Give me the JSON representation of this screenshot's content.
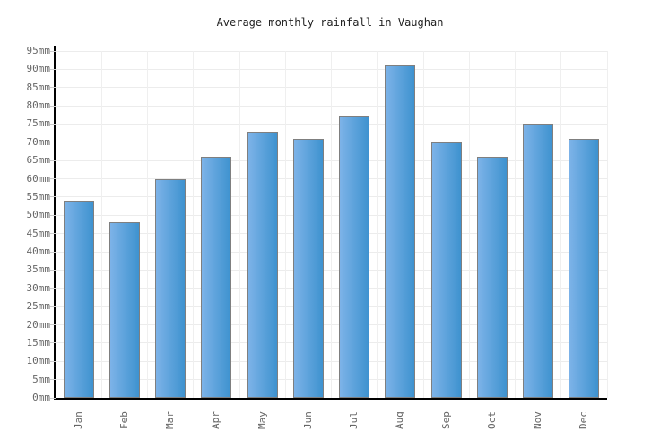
{
  "page": {
    "background": "#ffffff"
  },
  "chart": {
    "title": "Average monthly rainfall in Vaughan",
    "colors": {
      "bar_gradient_left": "#7db3e8",
      "bar_gradient_right": "#3e92cf",
      "bar_border": "#7f7f7f",
      "h_gridline": "#ececec",
      "v_gridline": "#efefef",
      "axis": "#000000",
      "tick_label": "#666666",
      "title": "#222222"
    }
  },
  "chart_data": {
    "type": "bar",
    "title": "Average monthly rainfall in Vaughan",
    "categories": [
      "Jan",
      "Feb",
      "Mar",
      "Apr",
      "May",
      "Jun",
      "Jul",
      "Aug",
      "Sep",
      "Oct",
      "Nov",
      "Dec"
    ],
    "values": [
      54,
      48,
      60,
      66,
      73,
      71,
      77,
      91,
      70,
      66,
      75,
      71
    ],
    "unit": "mm",
    "xlabel": "",
    "ylabel": "",
    "ylim": [
      0,
      95
    ],
    "ytick_step": 5,
    "ytick_labels": [
      "0mm",
      "5mm",
      "10mm",
      "15mm",
      "20mm",
      "25mm",
      "30mm",
      "35mm",
      "40mm",
      "45mm",
      "50mm",
      "55mm",
      "60mm",
      "65mm",
      "70mm",
      "75mm",
      "80mm",
      "85mm",
      "90mm",
      "95mm"
    ],
    "grid": true,
    "legend": false,
    "bar_orientation": "vertical",
    "x_label_rotation_deg": -90
  }
}
